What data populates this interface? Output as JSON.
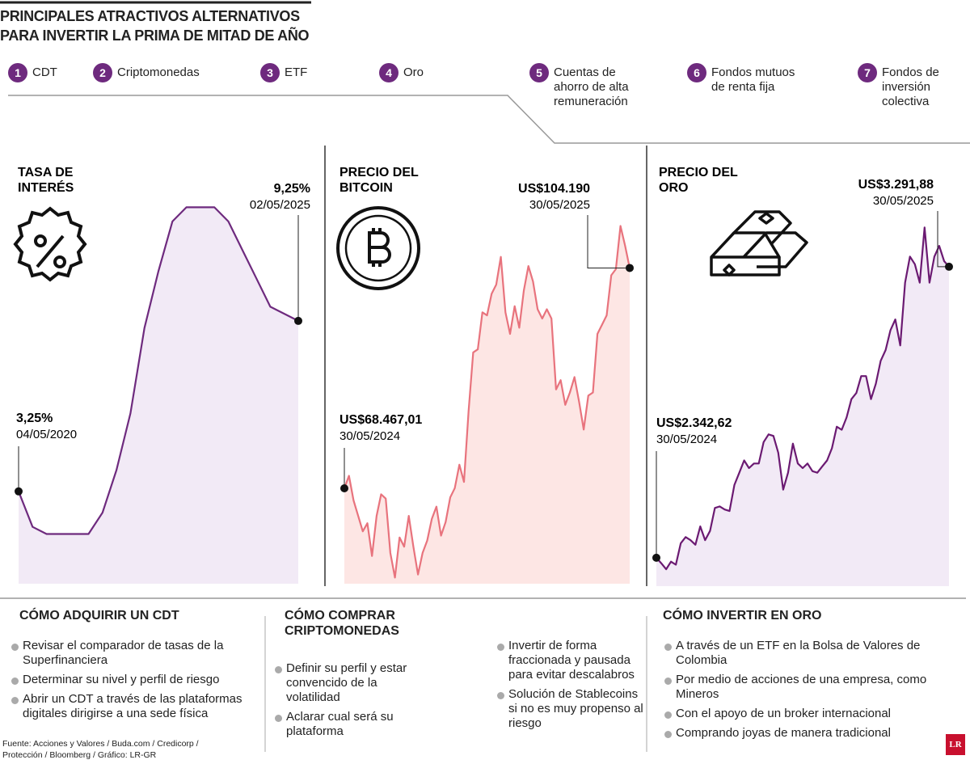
{
  "header": {
    "title": [
      "PRINCIPALES ATRACTIVOS ALTERNATIVOS",
      "PARA INVERTIR LA PRIMA DE MITAD DE AÑO"
    ]
  },
  "items": [
    {
      "number": "1",
      "label": [
        "CDT"
      ]
    },
    {
      "number": "2",
      "label": [
        "Criptomonedas"
      ]
    },
    {
      "number": "3",
      "label": [
        "ETF"
      ]
    },
    {
      "number": "4",
      "label": [
        "Oro"
      ]
    },
    {
      "number": "5",
      "label": [
        "Cuentas de",
        "ahorro de alta",
        "remuneración"
      ]
    },
    {
      "number": "6",
      "label": [
        "Fondos mutuos",
        "de renta fija"
      ]
    },
    {
      "number": "7",
      "label": [
        "Fondos de",
        "inversión",
        "colectiva"
      ]
    }
  ],
  "chart_data": [
    {
      "type": "line",
      "title": [
        "TASA DE",
        "INTERÉS"
      ],
      "color": "#6e2a7e",
      "fill": "#f2eaf6",
      "ylim": [
        0,
        14
      ],
      "categories": [
        "04/05/2020",
        null,
        null,
        null,
        null,
        null,
        null,
        null,
        null,
        null,
        null,
        null,
        null,
        null,
        null,
        null,
        null,
        null,
        null,
        null,
        "02/05/2025"
      ],
      "values": [
        3.25,
        2.0,
        1.75,
        1.75,
        1.75,
        1.75,
        2.5,
        4.0,
        6.0,
        9.0,
        11.0,
        12.75,
        13.25,
        13.25,
        13.25,
        12.75,
        11.75,
        10.75,
        9.75,
        9.5,
        9.25
      ],
      "value_labels": [
        "3,25%",
        null,
        null,
        null,
        null,
        null,
        null,
        null,
        null,
        null,
        null,
        null,
        null,
        null,
        null,
        null,
        null,
        null,
        null,
        null,
        "9,25%"
      ]
    },
    {
      "type": "line",
      "title": [
        "PRECIO DEL",
        "BITCOIN"
      ],
      "color": "#e8737d",
      "fill": "#fde6e4",
      "ylim": [
        53000,
        115000
      ],
      "categories": [
        "30/05/2024",
        null,
        null,
        null,
        null,
        null,
        null,
        null,
        null,
        null,
        null,
        null,
        null,
        null,
        null,
        null,
        null,
        null,
        null,
        null,
        null,
        null,
        null,
        null,
        null,
        null,
        null,
        null,
        null,
        null,
        null,
        null,
        null,
        null,
        null,
        null,
        null,
        null,
        null,
        null,
        null,
        null,
        null,
        null,
        null,
        null,
        null,
        null,
        null,
        null,
        null,
        null,
        null,
        null,
        null,
        null,
        null,
        null,
        null,
        null,
        null,
        null,
        "30/05/2025"
      ],
      "values": [
        68467.01,
        70500,
        66500,
        64000,
        61500,
        62800,
        57500,
        64000,
        67500,
        66800,
        58000,
        54000,
        60500,
        59000,
        64000,
        59000,
        54500,
        58000,
        60000,
        63500,
        65500,
        60800,
        63000,
        67000,
        68500,
        72300,
        69500,
        81000,
        90500,
        91000,
        97000,
        96500,
        100000,
        101500,
        106000,
        97000,
        93500,
        98000,
        94500,
        100500,
        104500,
        102000,
        97500,
        96000,
        97500,
        96000,
        84500,
        86000,
        82000,
        84000,
        86500,
        82500,
        78000,
        83500,
        84000,
        93500,
        95000,
        96500,
        103000,
        104000,
        111000,
        107800,
        104190
      ],
      "value_labels": [
        "US$68.467,01",
        null,
        null,
        null,
        null,
        null,
        null,
        null,
        null,
        null,
        null,
        null,
        null,
        null,
        null,
        null,
        null,
        null,
        null,
        null,
        null,
        null,
        null,
        null,
        null,
        null,
        null,
        null,
        null,
        null,
        null,
        null,
        null,
        null,
        null,
        null,
        null,
        null,
        null,
        null,
        null,
        null,
        null,
        null,
        null,
        null,
        null,
        null,
        null,
        null,
        null,
        null,
        null,
        null,
        null,
        null,
        null,
        null,
        null,
        null,
        null,
        null,
        "US$104.190"
      ]
    },
    {
      "type": "line",
      "title": [
        "PRECIO DEL",
        "ORO"
      ],
      "color": "#6b1a72",
      "fill": "#f2eaf6",
      "ylim": [
        2250,
        3500
      ],
      "categories": [
        "30/05/2024",
        null,
        null,
        null,
        null,
        null,
        null,
        null,
        null,
        null,
        null,
        null,
        null,
        null,
        null,
        null,
        null,
        null,
        null,
        null,
        null,
        null,
        null,
        null,
        null,
        null,
        null,
        null,
        null,
        null,
        null,
        null,
        null,
        null,
        null,
        null,
        null,
        null,
        null,
        null,
        null,
        null,
        null,
        null,
        null,
        null,
        null,
        null,
        null,
        null,
        null,
        null,
        null,
        null,
        null,
        null,
        null,
        null,
        null,
        null,
        "30/05/2025"
      ],
      "values": [
        2342.62,
        2325,
        2305,
        2330,
        2320,
        2390,
        2410,
        2400,
        2385,
        2445,
        2400,
        2430,
        2505,
        2510,
        2500,
        2495,
        2580,
        2620,
        2660,
        2635,
        2650,
        2650,
        2720,
        2745,
        2740,
        2685,
        2565,
        2620,
        2715,
        2650,
        2635,
        2650,
        2625,
        2620,
        2640,
        2660,
        2700,
        2770,
        2760,
        2800,
        2860,
        2880,
        2935,
        2935,
        2860,
        2910,
        2985,
        3020,
        3085,
        3120,
        3035,
        3240,
        3325,
        3300,
        3240,
        3420,
        3240,
        3325,
        3360,
        3310,
        3291.88
      ],
      "value_labels": [
        "US$2.342,62",
        null,
        null,
        null,
        null,
        null,
        null,
        null,
        null,
        null,
        null,
        null,
        null,
        null,
        null,
        null,
        null,
        null,
        null,
        null,
        null,
        null,
        null,
        null,
        null,
        null,
        null,
        null,
        null,
        null,
        null,
        null,
        null,
        null,
        null,
        null,
        null,
        null,
        null,
        null,
        null,
        null,
        null,
        null,
        null,
        null,
        null,
        null,
        null,
        null,
        null,
        null,
        null,
        null,
        null,
        null,
        null,
        null,
        null,
        null,
        "US$3.291,88"
      ]
    }
  ],
  "sections": [
    {
      "title": "CÓMO ADQUIRIR UN CDT",
      "bullets": [
        "Revisar el comparador de tasas de la Superfinanciera",
        "Determinar su nivel y perfil de riesgo",
        "Abrir un CDT a través de las plataformas digitales dirigirse a una sede física"
      ]
    },
    {
      "title": "CÓMO COMPRAR CRIPTOMONEDAS",
      "bullets": [
        "Definir su perfil y estar convencido de la volatilidad",
        "Aclarar cual será su plataforma",
        "Invertir de forma fraccionada y pausada para evitar descalabros",
        "Solución de Stablecoins si no es muy propenso al riesgo"
      ]
    },
    {
      "title": "CÓMO INVERTIR EN ORO",
      "bullets": [
        "A través de un ETF en la Bolsa de Valores de Colombia",
        "Por medio de acciones de una empresa, como Mineros",
        "Con el apoyo de un broker internacional",
        "Comprando joyas de manera tradicional"
      ]
    }
  ],
  "source": "Fuente: Acciones y Valores / Buda.com / Credicorp / Protección / Bloomberg / Gráfico: LR-GR",
  "logo": "LR"
}
